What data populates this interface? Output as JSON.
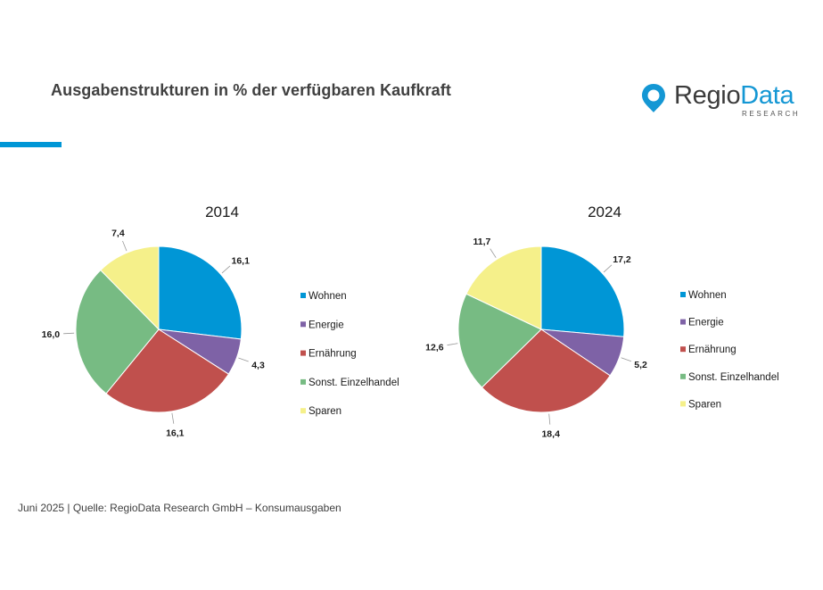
{
  "header": {
    "title": "Ausgabenstrukturen in % der verfügbaren Kaufkraft",
    "logo": {
      "name_part1": "Regio",
      "name_part2": "Data",
      "subtitle": "RESEARCH",
      "accent_color": "#1497d4"
    }
  },
  "footer": {
    "source": "Juni 2025 | Quelle: RegioData Research GmbH – Konsumausgaben"
  },
  "chart_data": [
    {
      "type": "pie",
      "title": "2014",
      "categories": [
        "Wohnen",
        "Energie",
        "Ernährung",
        "Sonst. Einzelhandel",
        "Sparen"
      ],
      "values": [
        16.1,
        4.3,
        16.1,
        16.0,
        7.4
      ],
      "value_labels": [
        "16,1",
        "4,3",
        "16,1",
        "16,0",
        "7,4"
      ],
      "colors": [
        "#0096d6",
        "#7e62a6",
        "#c0504d",
        "#77bb83",
        "#f5f08a"
      ],
      "legend": "right"
    },
    {
      "type": "pie",
      "title": "2024",
      "categories": [
        "Wohnen",
        "Energie",
        "Ernährung",
        "Sonst. Einzelhandel",
        "Sparen"
      ],
      "values": [
        17.2,
        5.2,
        18.4,
        12.6,
        11.7
      ],
      "value_labels": [
        "17,2",
        "5,2",
        "18,4",
        "12,6",
        "11,7"
      ],
      "colors": [
        "#0096d6",
        "#7e62a6",
        "#c0504d",
        "#77bb83",
        "#f5f08a"
      ],
      "legend": "right"
    }
  ]
}
